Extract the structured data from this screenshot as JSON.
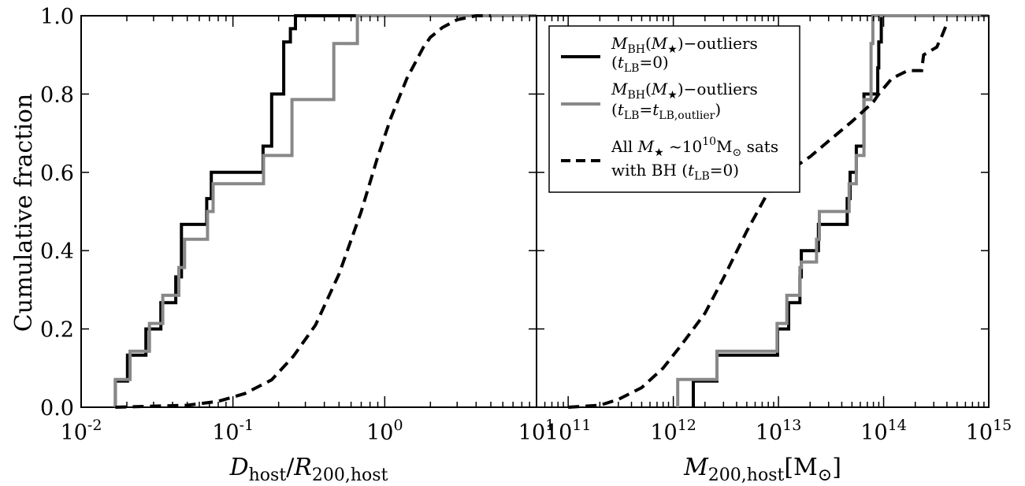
{
  "figure": {
    "ylabel": "Cumulative fraction",
    "legend": {
      "placement": "top-left of right panel",
      "entries": [
        {
          "line1": "M_BH(M_★)−outliers",
          "line2": "(t_LB = 0)",
          "color": "#000000",
          "style": "solid"
        },
        {
          "line1": "M_BH(M_★)−outliers",
          "line2": "(t_LB = t_LB,outlier)",
          "color": "#888888",
          "style": "solid"
        },
        {
          "line1": "All M_★ ~10^10 M_⊙ sats",
          "line2": "with BH (t_LB = 0)",
          "color": "#000000",
          "style": "dashed"
        }
      ]
    }
  },
  "chart_data": [
    {
      "type": "line",
      "panel": "left",
      "xlabel": "D_host/R_200,host",
      "xscale": "log",
      "xlim": [
        0.01,
        10
      ],
      "ylim": [
        0.0,
        1.0
      ],
      "xticks": [
        "10^-2",
        "10^-1",
        "10^0",
        "10^1"
      ],
      "yticks": [
        "0.0",
        "0.2",
        "0.4",
        "0.6",
        "0.8",
        "1.0"
      ],
      "grid": false,
      "series": [
        {
          "id": "black",
          "color": "#000000",
          "style": "step",
          "x": [
            0.0168,
            0.0202,
            0.0267,
            0.0335,
            0.042,
            0.0458,
            0.0672,
            0.072,
            0.158,
            0.18,
            0.216,
            0.239,
            0.258
          ],
          "y": [
            0.067,
            0.133,
            0.2,
            0.267,
            0.333,
            0.467,
            0.533,
            0.6,
            0.667,
            0.8,
            0.933,
            0.967,
            1.0
          ]
        },
        {
          "id": "grey",
          "color": "#888888",
          "style": "step",
          "x": [
            0.0168,
            0.021,
            0.0282,
            0.0345,
            0.044,
            0.048,
            0.068,
            0.074,
            0.159,
            0.245,
            0.462,
            0.66
          ],
          "y": [
            0.071,
            0.143,
            0.214,
            0.286,
            0.357,
            0.429,
            0.5,
            0.571,
            0.643,
            0.786,
            0.929,
            1.0
          ]
        },
        {
          "id": "dashed",
          "color": "#000000",
          "style": "dashed",
          "x": [
            0.0168,
            0.05,
            0.08,
            0.12,
            0.18,
            0.25,
            0.35,
            0.5,
            0.7,
            0.9,
            1.1,
            1.4,
            1.8,
            2.0,
            2.4,
            3.0,
            4.0,
            5.0
          ],
          "y": [
            0.0,
            0.005,
            0.015,
            0.035,
            0.07,
            0.13,
            0.21,
            0.34,
            0.5,
            0.64,
            0.74,
            0.84,
            0.92,
            0.945,
            0.97,
            0.99,
            1.0,
            1.0
          ]
        }
      ]
    },
    {
      "type": "line",
      "panel": "right",
      "xlabel": "M_200,host[M_⊙]",
      "xscale": "log",
      "xlim": [
        50000000000.0,
        1000000000000000.0
      ],
      "ylim": [
        0.0,
        1.0
      ],
      "xticks": [
        "10^11",
        "10^12",
        "10^13",
        "10^14",
        "10^15"
      ],
      "grid": false,
      "series": [
        {
          "id": "black",
          "color": "#000000",
          "style": "step",
          "x": [
            1550000000000.0,
            2600000000000.0,
            9800000000000.0,
            12500000000000.0,
            16000000000000.0,
            16500000000000.0,
            24000000000000.0,
            45000000000000.0,
            48000000000000.0,
            55000000000000.0,
            65000000000000.0,
            88000000000000.0,
            90000000000000.0,
            95000000000000.0
          ],
          "y": [
            0.067,
            0.133,
            0.2,
            0.267,
            0.333,
            0.4,
            0.467,
            0.533,
            0.6,
            0.667,
            0.8,
            0.867,
            0.933,
            1.0
          ]
        },
        {
          "id": "grey",
          "color": "#888888",
          "style": "step",
          "x": [
            1100000000000.0,
            2600000000000.0,
            9700000000000.0,
            12000000000000.0,
            16000000000000.0,
            16500000000000.0,
            23000000000000.0,
            24500000000000.0,
            47000000000000.0,
            55000000000000.0,
            65000000000000.0,
            76000000000000.0,
            79000000000000.0
          ],
          "y": [
            0.071,
            0.143,
            0.214,
            0.286,
            0.357,
            0.371,
            0.429,
            0.5,
            0.571,
            0.643,
            0.786,
            0.929,
            1.0
          ]
        },
        {
          "id": "dashed",
          "color": "#000000",
          "style": "dashed",
          "x": [
            100000000000.0,
            200000000000.0,
            300000000000.0,
            500000000000.0,
            800000000000.0,
            1200000000000.0,
            2000000000000.0,
            3000000000000.0,
            5000000000000.0,
            8000000000000.0,
            12000000000000.0,
            20000000000000.0,
            30000000000000.0,
            50000000000000.0,
            80000000000000.0,
            90000000000000.0,
            120000000000000.0,
            170000000000000.0,
            230000000000000.0,
            240000000000000.0,
            320000000000000.0,
            360000000000000.0,
            400000000000000.0
          ],
          "y": [
            0.0,
            0.005,
            0.02,
            0.05,
            0.1,
            0.16,
            0.24,
            0.33,
            0.45,
            0.55,
            0.6,
            0.64,
            0.68,
            0.73,
            0.78,
            0.8,
            0.84,
            0.86,
            0.86,
            0.9,
            0.92,
            0.95,
            0.98
          ]
        }
      ]
    }
  ]
}
